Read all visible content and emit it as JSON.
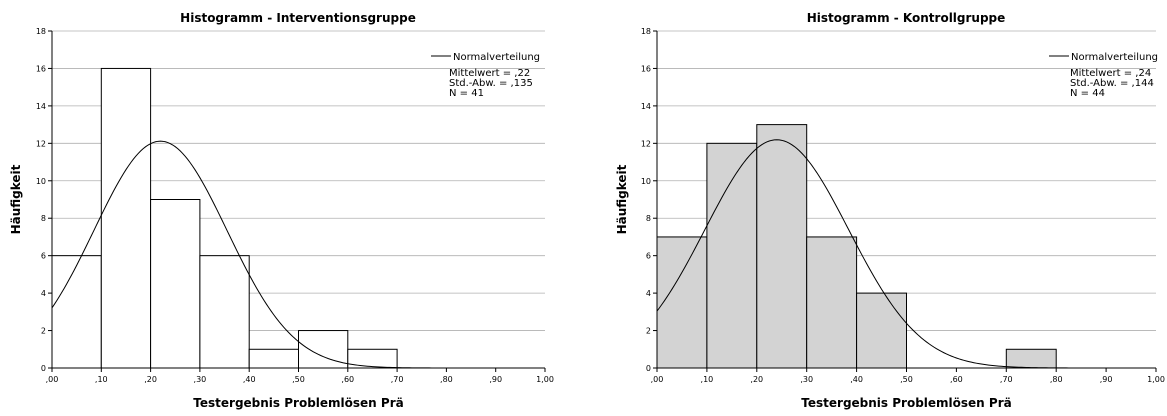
{
  "chart_data": [
    {
      "type": "bar",
      "title": "Histogramm - Interventionsgruppe",
      "xlabel": "Testergebnis Problemlösen Prä",
      "ylabel": "Häufigkeit",
      "x_ticks": [
        ",00",
        ",10",
        ",20",
        ",30",
        ",40",
        ",50",
        ",60",
        ",70",
        ",80",
        ",90",
        "1,00"
      ],
      "y_ticks": [
        "0",
        "2",
        "4",
        "6",
        "8",
        "10",
        "12",
        "14",
        "16",
        "18"
      ],
      "xlim": [
        0,
        1.0
      ],
      "ylim": [
        0,
        18
      ],
      "bin_width": 0.1,
      "bins": [
        {
          "start": 0.0,
          "end": 0.1,
          "count": 6
        },
        {
          "start": 0.1,
          "end": 0.2,
          "count": 16
        },
        {
          "start": 0.2,
          "end": 0.3,
          "count": 9
        },
        {
          "start": 0.3,
          "end": 0.4,
          "count": 6
        },
        {
          "start": 0.4,
          "end": 0.5,
          "count": 1
        },
        {
          "start": 0.5,
          "end": 0.6,
          "count": 2
        },
        {
          "start": 0.6,
          "end": 0.7,
          "count": 1
        }
      ],
      "bar_color": "#ffffff",
      "normal_curve": {
        "mean": 0.22,
        "sd": 0.135,
        "n": 41
      },
      "legend": {
        "label": "Normalverteilung",
        "placement": "top-right"
      },
      "stats": [
        "Mittelwert = ,22",
        "Std.-Abw. = ,135",
        "N = 41"
      ],
      "grid": "horizontal"
    },
    {
      "type": "bar",
      "title": "Histogramm - Kontrollgruppe",
      "xlabel": "Testergebnis Problemlösen Prä",
      "ylabel": "Häufigkeit",
      "x_ticks": [
        ",00",
        ",10",
        ",20",
        ",30",
        ",40",
        ",50",
        ",60",
        ",70",
        ",80",
        ",90",
        "1,00"
      ],
      "y_ticks": [
        "0",
        "2",
        "4",
        "6",
        "8",
        "10",
        "12",
        "14",
        "16",
        "18"
      ],
      "xlim": [
        0,
        1.0
      ],
      "ylim": [
        0,
        18
      ],
      "bin_width": 0.1,
      "bins": [
        {
          "start": 0.0,
          "end": 0.1,
          "count": 7
        },
        {
          "start": 0.1,
          "end": 0.2,
          "count": 12
        },
        {
          "start": 0.2,
          "end": 0.3,
          "count": 13
        },
        {
          "start": 0.3,
          "end": 0.4,
          "count": 7
        },
        {
          "start": 0.4,
          "end": 0.5,
          "count": 4
        },
        {
          "start": 0.7,
          "end": 0.8,
          "count": 1
        }
      ],
      "bar_color": "#d3d3d3",
      "normal_curve": {
        "mean": 0.24,
        "sd": 0.144,
        "n": 44
      },
      "legend": {
        "label": "Normalverteilung",
        "placement": "top-right"
      },
      "stats": [
        "Mittelwert = ,24",
        "Std.-Abw. = ,144",
        "N = 44"
      ],
      "grid": "horizontal"
    }
  ]
}
